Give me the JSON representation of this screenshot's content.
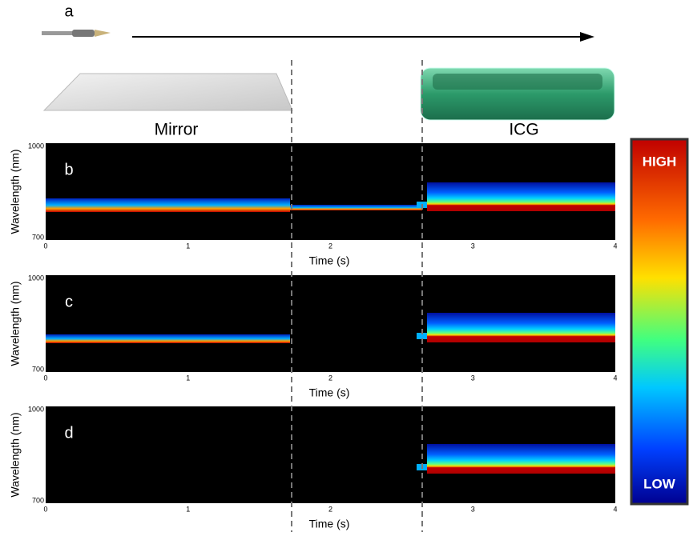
{
  "figure": {
    "panel_a": {
      "label": "a",
      "left_label": "Mirror",
      "right_label": "ICG"
    },
    "panels": [
      {
        "label": "b"
      },
      {
        "label": "c"
      },
      {
        "label": "d"
      }
    ],
    "axes": {
      "ylabel": "Wavelength (nm)",
      "xlabel": "Time (s)",
      "yticks": [
        1000,
        700
      ],
      "xticks": [
        0,
        1,
        2,
        3,
        4
      ]
    },
    "colorbar": {
      "high": "HIGH",
      "low": "LOW"
    }
  }
}
